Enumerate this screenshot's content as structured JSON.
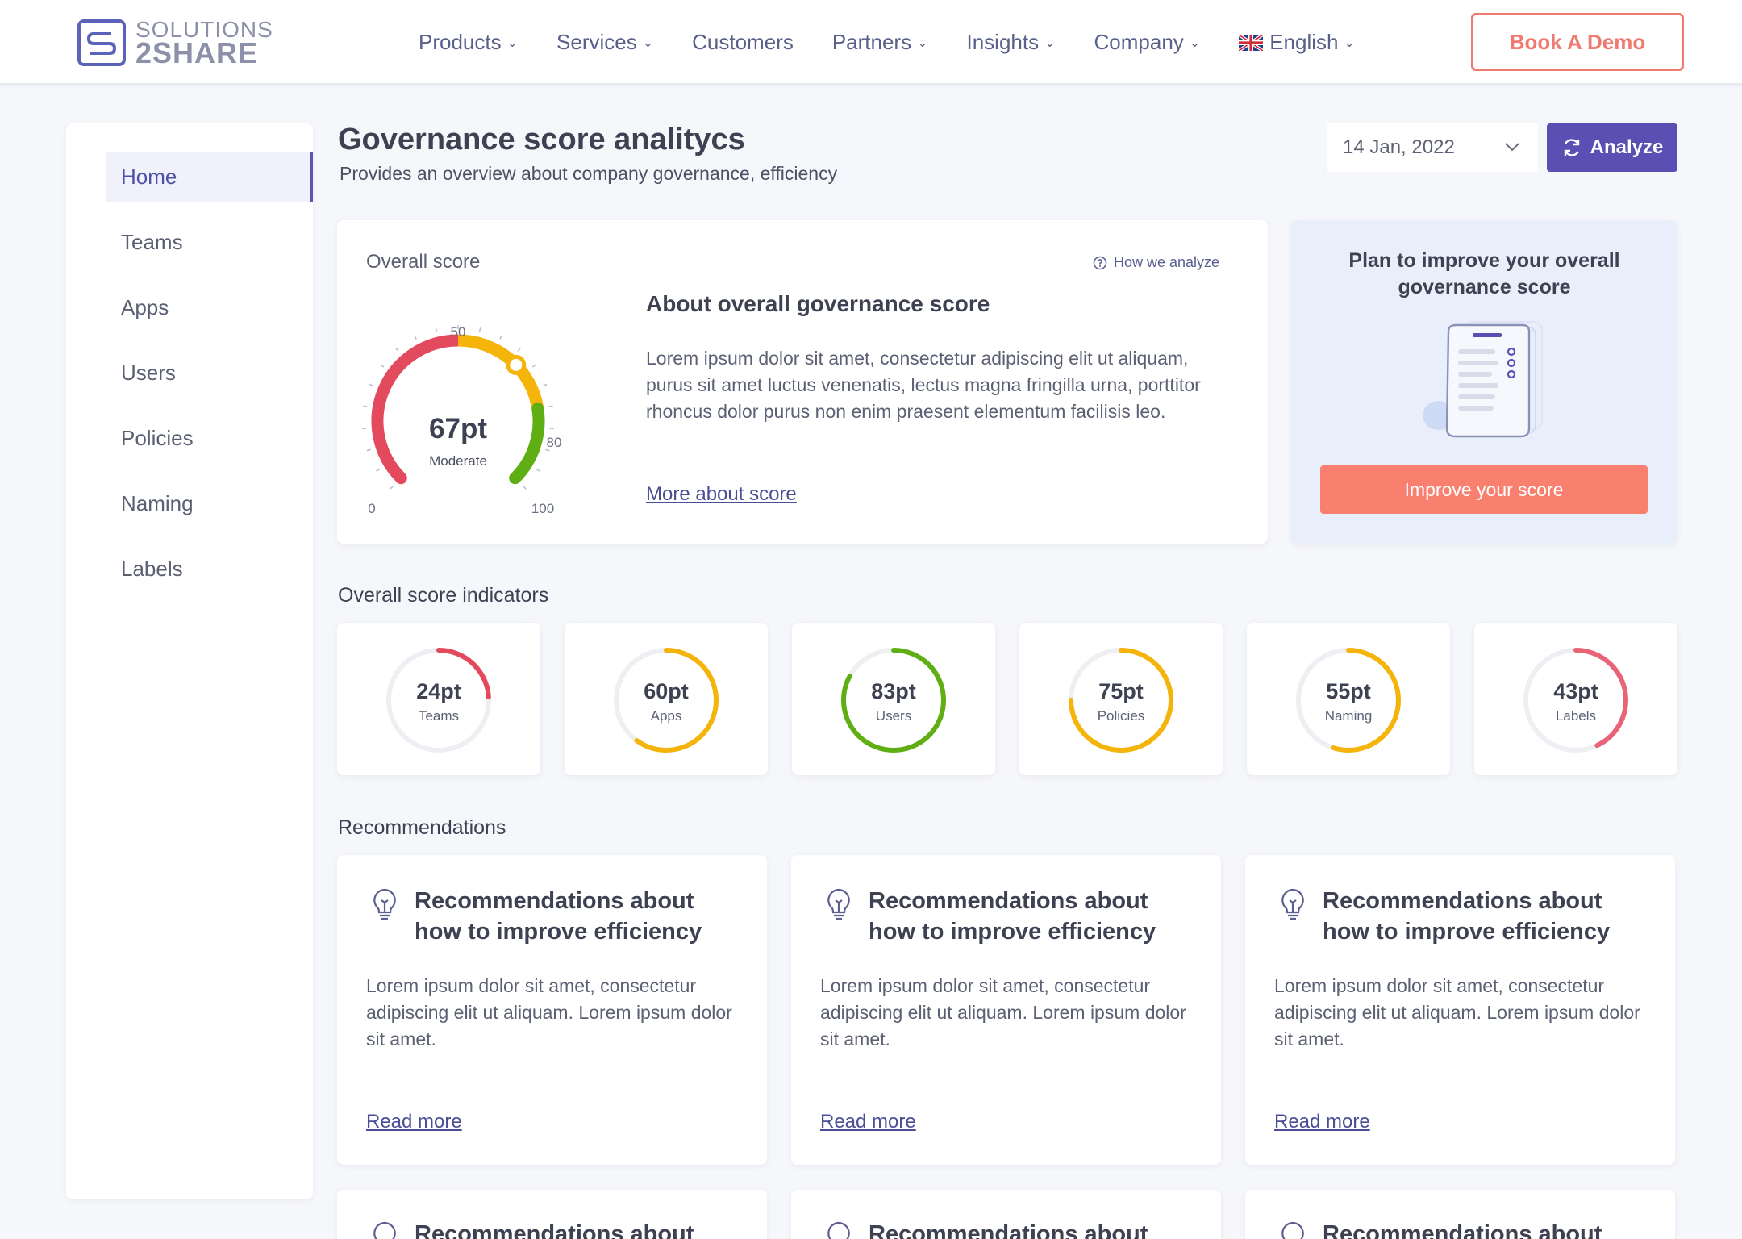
{
  "brand": {
    "line1": "SOLUTIONS",
    "line2": "2SHARE"
  },
  "nav": {
    "items": [
      {
        "label": "Products",
        "dropdown": true
      },
      {
        "label": "Services",
        "dropdown": true
      },
      {
        "label": "Customers",
        "dropdown": false
      },
      {
        "label": "Partners",
        "dropdown": true
      },
      {
        "label": "Insights",
        "dropdown": true
      },
      {
        "label": "Company",
        "dropdown": true
      }
    ],
    "language": "English",
    "book_demo": "Book A Demo"
  },
  "sidebar": {
    "items": [
      {
        "label": "Home",
        "active": true
      },
      {
        "label": "Teams",
        "active": false
      },
      {
        "label": "Apps",
        "active": false
      },
      {
        "label": "Users",
        "active": false
      },
      {
        "label": "Policies",
        "active": false
      },
      {
        "label": "Naming",
        "active": false
      },
      {
        "label": "Labels",
        "active": false
      }
    ]
  },
  "page": {
    "title": "Governance score analitycs",
    "subtitle": "Provides an overview about company governance, efficiency",
    "date": "14 Jan, 2022",
    "analyze": "Analyze"
  },
  "overall": {
    "label": "Overall score",
    "how": "How we analyze",
    "gauge": {
      "value": "67pt",
      "score": 67,
      "status": "Moderate",
      "ticks": [
        "0",
        "50",
        "80",
        "100"
      ]
    },
    "about_title": "About overall governance score",
    "about_text": "Lorem ipsum dolor sit amet, consectetur adipiscing elit ut aliquam, purus sit amet luctus venenatis, lectus magna fringilla urna, porttitor rhoncus dolor purus non enim praesent elementum facilisis leo.",
    "more_link": "More about score"
  },
  "plan": {
    "title": "Plan to improve your overall governance score",
    "button": "Improve your score"
  },
  "indicators": {
    "title": "Overall score indicators",
    "items": [
      {
        "value": "24pt",
        "name": "Teams",
        "score": 24,
        "color": "#e34a5e"
      },
      {
        "value": "60pt",
        "name": "Apps",
        "score": 60,
        "color": "#f5b40a"
      },
      {
        "value": "83pt",
        "name": "Users",
        "score": 83,
        "color": "#5fae13"
      },
      {
        "value": "75pt",
        "name": "Policies",
        "score": 75,
        "color": "#f5b40a"
      },
      {
        "value": "55pt",
        "name": "Naming",
        "score": 55,
        "color": "#f5b40a"
      },
      {
        "value": "43pt",
        "name": "Labels",
        "score": 43,
        "color": "#ea6478"
      }
    ]
  },
  "recommendations": {
    "title": "Recommendations",
    "items": [
      {
        "title": "Recommendations about how to improve efficiency",
        "text": "Lorem ipsum dolor sit amet, consectetur adipiscing elit ut aliquam. Lorem ipsum dolor sit amet.",
        "link": "Read more"
      },
      {
        "title": "Recommendations about how to improve efficiency",
        "text": "Lorem ipsum dolor sit amet, consectetur adipiscing elit ut aliquam. Lorem ipsum dolor sit amet.",
        "link": "Read more"
      },
      {
        "title": "Recommendations about how to improve efficiency",
        "text": "Lorem ipsum dolor sit amet, consectetur adipiscing elit ut aliquam. Lorem ipsum dolor sit amet.",
        "link": "Read more"
      }
    ],
    "partial": [
      {
        "title": "Recommendations about"
      },
      {
        "title": "Recommendations about"
      },
      {
        "title": "Recommendations about"
      }
    ]
  },
  "colors": {
    "accent": "#5b4fb3",
    "cta": "#f97f6e",
    "red": "#e34a5e",
    "yellow": "#f5b40a",
    "green": "#5fae13"
  }
}
